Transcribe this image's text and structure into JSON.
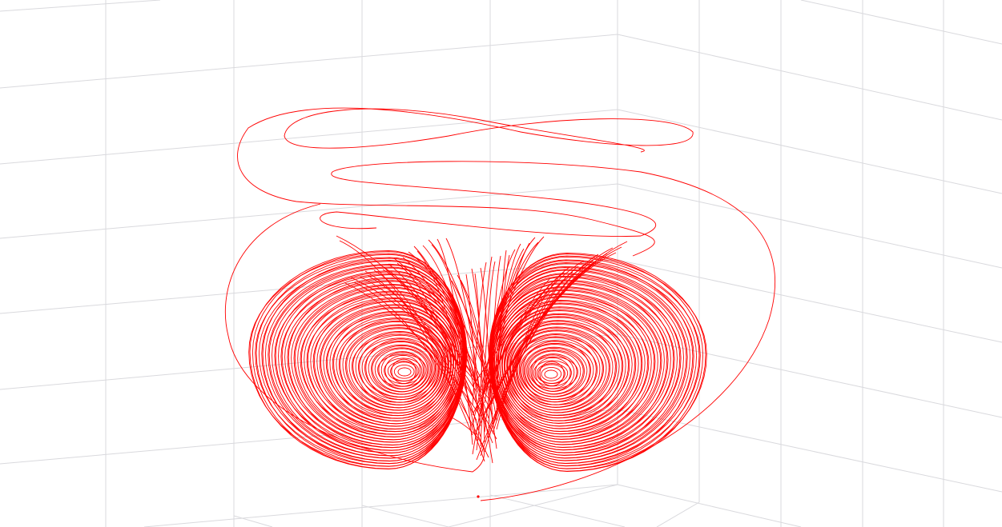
{
  "chart_data": {
    "type": "line3d",
    "color": "#ff0000",
    "grid": true
  }
}
